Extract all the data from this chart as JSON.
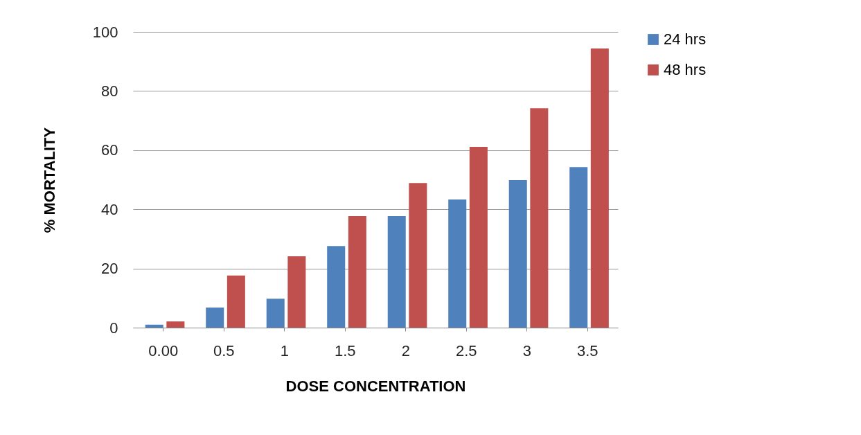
{
  "chart_data": {
    "type": "bar",
    "xlabel": "DOSE CONCENTRATION",
    "ylabel": "% MORTALITY",
    "categories": [
      "0.00",
      "0.5",
      "1",
      "1.5",
      "2",
      "2.5",
      "3",
      "3.5"
    ],
    "series": [
      {
        "name": "24 hrs",
        "color": "#4f81bd",
        "values": [
          1,
          6.8,
          9.8,
          27.6,
          37.7,
          43.3,
          49.9,
          54.3
        ]
      },
      {
        "name": "48 hrs",
        "color": "#c0504d",
        "values": [
          2.1,
          17.6,
          24.1,
          37.7,
          48.9,
          61.1,
          74.2,
          94.4
        ]
      }
    ],
    "ylim": [
      0,
      100
    ],
    "yticks": [
      0,
      20,
      40,
      60,
      80,
      100
    ],
    "grid": "y",
    "legend": "right"
  }
}
